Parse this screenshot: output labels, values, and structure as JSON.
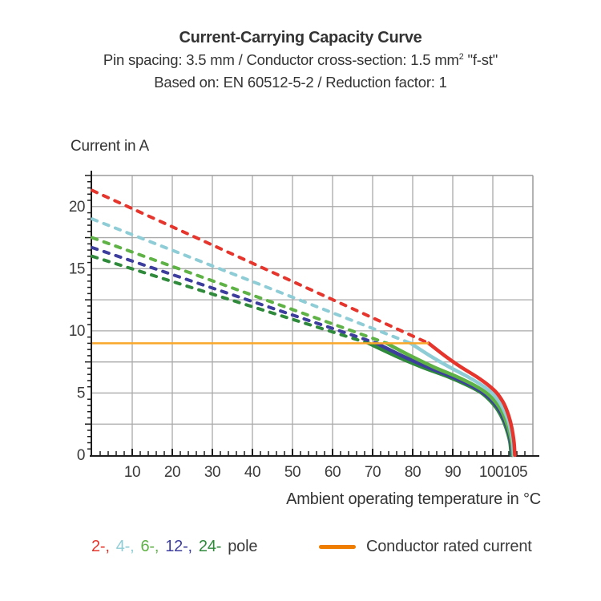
{
  "header": {
    "title": "Current-Carrying Capacity Curve",
    "subtitle1_pre": "Pin spacing: 3.5 mm / Conductor cross-section: 1.5 mm",
    "subtitle1_sup": "2",
    "subtitle1_post": " \"f-st\"",
    "subtitle2": "Based on: EN 60512-5-2 / Reduction factor: 1"
  },
  "chart_data": {
    "type": "line",
    "title": "Current-Carrying Capacity Curve",
    "axes": {
      "x": {
        "label": "Ambient operating temperature in °C",
        "min": 0,
        "max": 110,
        "grid_step": 10,
        "minor_tick_step": 2,
        "tick_labels": [
          {
            "v": 10,
            "t": "10"
          },
          {
            "v": 20,
            "t": "20"
          },
          {
            "v": 30,
            "t": "30"
          },
          {
            "v": 40,
            "t": "40"
          },
          {
            "v": 50,
            "t": "50"
          },
          {
            "v": 60,
            "t": "60"
          },
          {
            "v": 70,
            "t": "70"
          },
          {
            "v": 80,
            "t": "80"
          },
          {
            "v": 90,
            "t": "90"
          },
          {
            "v": 100,
            "t": "100",
            "dx": -2
          },
          {
            "v": 105,
            "t": "105",
            "dx": 3
          }
        ]
      },
      "y": {
        "label": "Current in A",
        "min": 0,
        "max": 22.5,
        "grid_step": 2.5,
        "minor_tick_step": 0.5,
        "medium_tick_step": 2.5,
        "tick_labels": [
          {
            "v": 0,
            "t": "0"
          },
          {
            "v": 5,
            "t": "5"
          },
          {
            "v": 10,
            "t": "10"
          },
          {
            "v": 15,
            "t": "15"
          },
          {
            "v": 20,
            "t": "20"
          }
        ]
      }
    },
    "grid_color": "#a9a9a9",
    "border_color": "#9a9a9a",
    "axis_color": "#1c1c1c",
    "tick_text_color": "#3a3a3a",
    "rated_current_A": 9,
    "rated_line": {
      "label": "Conductor rated current",
      "color": "#f9a72b",
      "legend_swatch_color": "#ee7d00",
      "points": [
        [
          0,
          9
        ],
        [
          84,
          9
        ]
      ]
    },
    "series": [
      {
        "name": "2-pole",
        "legend_label": "2-,",
        "color": "#e5352c",
        "dashed_points": [
          [
            0,
            21.3
          ],
          [
            84,
            9
          ]
        ],
        "solid_points": [
          [
            84,
            9
          ],
          [
            88,
            8
          ],
          [
            92,
            7.1
          ],
          [
            96,
            6.3
          ],
          [
            99,
            5.6
          ],
          [
            101,
            5
          ],
          [
            102.5,
            4.3
          ],
          [
            103.5,
            3.6
          ],
          [
            104.3,
            2.8
          ],
          [
            104.9,
            1.9
          ],
          [
            105.3,
            1
          ],
          [
            105.5,
            0
          ]
        ]
      },
      {
        "name": "4-pole",
        "legend_label": "4-,",
        "color": "#8fcdd6",
        "dashed_points": [
          [
            0,
            19.0
          ],
          [
            79.5,
            9
          ]
        ],
        "solid_points": [
          [
            79.5,
            9
          ],
          [
            84.3,
            8
          ],
          [
            89.1,
            7.1
          ],
          [
            93.8,
            6.3
          ],
          [
            97.4,
            5.6
          ],
          [
            99.8,
            5
          ],
          [
            101.6,
            4.3
          ],
          [
            102.8,
            3.6
          ],
          [
            103.8,
            2.8
          ],
          [
            104.5,
            1.9
          ],
          [
            105,
            1
          ],
          [
            105.2,
            0
          ]
        ]
      },
      {
        "name": "6-pole",
        "legend_label": "6-,",
        "color": "#5fb245",
        "dashed_points": [
          [
            0,
            17.5
          ],
          [
            73.5,
            9
          ]
        ],
        "solid_points": [
          [
            73.5,
            9
          ],
          [
            79.4,
            8
          ],
          [
            85.2,
            7.1
          ],
          [
            91.1,
            6.3
          ],
          [
            95.5,
            5.6
          ],
          [
            98.4,
            5
          ],
          [
            100.6,
            4.3
          ],
          [
            102.1,
            3.6
          ],
          [
            103.2,
            2.8
          ],
          [
            104.1,
            1.9
          ],
          [
            104.7,
            1
          ],
          [
            105,
            0
          ]
        ]
      },
      {
        "name": "12-pole",
        "legend_label": "12-,",
        "color": "#3d3d9e",
        "dashed_points": [
          [
            0,
            16.7
          ],
          [
            71,
            9
          ]
        ],
        "solid_points": [
          [
            71,
            9
          ],
          [
            77.3,
            8
          ],
          [
            83.6,
            7.1
          ],
          [
            89.9,
            6.3
          ],
          [
            94.6,
            5.6
          ],
          [
            97.7,
            5
          ],
          [
            100.1,
            4.3
          ],
          [
            101.7,
            3.6
          ],
          [
            102.9,
            2.8
          ],
          [
            103.9,
            1.9
          ],
          [
            104.5,
            1
          ],
          [
            104.8,
            0
          ]
        ]
      },
      {
        "name": "24-pole",
        "legend_label": "24-",
        "color": "#2f8a3c",
        "dashed_points": [
          [
            0,
            16.0
          ],
          [
            69,
            9
          ]
        ],
        "solid_points": [
          [
            69,
            9
          ],
          [
            75.6,
            8
          ],
          [
            82.2,
            7.1
          ],
          [
            88.9,
            6.3
          ],
          [
            93.8,
            5.6
          ],
          [
            97.2,
            5
          ],
          [
            99.6,
            4.3
          ],
          [
            101.3,
            3.6
          ],
          [
            102.6,
            2.8
          ],
          [
            103.6,
            1.9
          ],
          [
            104.3,
            1
          ],
          [
            104.6,
            0
          ]
        ]
      }
    ],
    "legend": {
      "suffix": "pole",
      "suffix_color": "#3a3a3a"
    }
  }
}
